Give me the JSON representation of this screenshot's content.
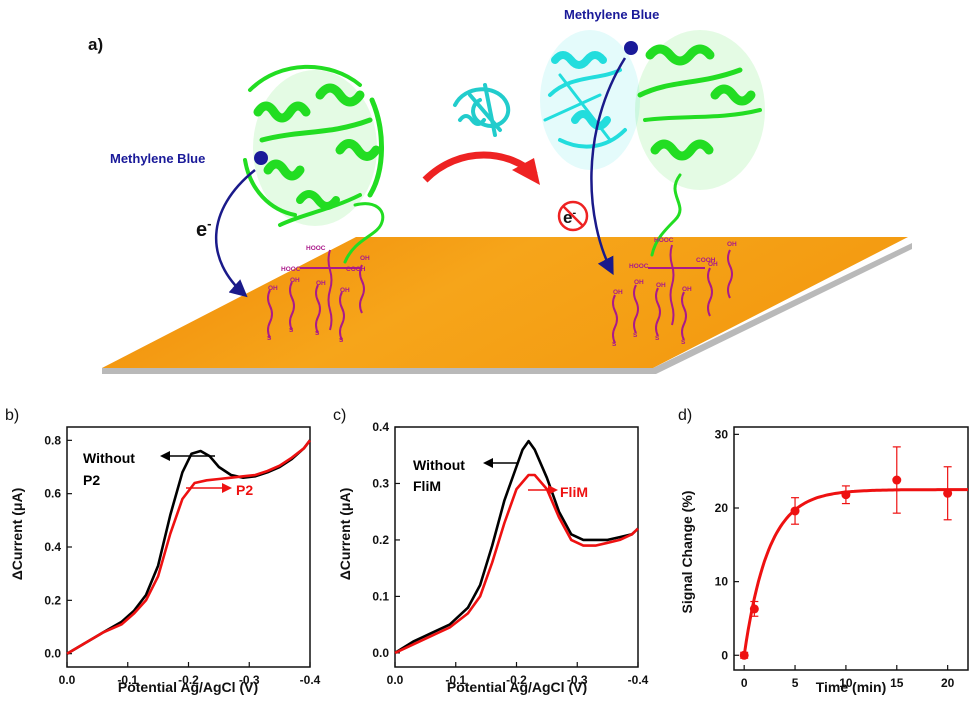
{
  "panel_a": {
    "label": "a)",
    "mb_left": "Methylene Blue",
    "mb_right": "Methylene Blue",
    "electron_left": "e",
    "electron_left_sup": "-",
    "electron_right": "e",
    "electron_right_sup": "-",
    "chem_labels": {
      "hooc_top": "HOOC",
      "hooc_side": "HOOC",
      "cooh": "COOH",
      "oh": "OH",
      "s": "S"
    },
    "colors": {
      "surface": "#f39a10",
      "protein": "#22dd22",
      "binder": "#22dddd",
      "arrow_red": "#ee2222",
      "arrow_blue": "#1a1a8a",
      "linker": "#aa1a8a",
      "mb_dot": "#1a1a99"
    }
  },
  "chart_data": [
    {
      "type": "line",
      "panel_label": "b)",
      "xlabel": "Potential Ag/AgCl (V)",
      "ylabel": "ΔCurrent (μA)",
      "xlim": [
        0.0,
        -0.4
      ],
      "ylim": [
        -0.05,
        0.85
      ],
      "xticks": [
        "0.0",
        "-0.1",
        "-0.2",
        "-0.3",
        "-0.4"
      ],
      "yticks": [
        "0.0",
        "0.2",
        "0.4",
        "0.6",
        "0.8"
      ],
      "annotations": [
        {
          "text": "Without",
          "color": "#000000"
        },
        {
          "text": "P2",
          "color": "#000000"
        },
        {
          "text": "P2",
          "color": "#ee1111"
        }
      ],
      "series": [
        {
          "color": "#000000",
          "x": [
            0.0,
            -0.03,
            -0.06,
            -0.09,
            -0.11,
            -0.13,
            -0.15,
            -0.17,
            -0.19,
            -0.205,
            -0.22,
            -0.235,
            -0.25,
            -0.27,
            -0.29,
            -0.31,
            -0.33,
            -0.35,
            -0.37,
            -0.39,
            -0.4
          ],
          "y": [
            0.0,
            0.04,
            0.08,
            0.12,
            0.16,
            0.22,
            0.33,
            0.52,
            0.68,
            0.75,
            0.76,
            0.74,
            0.7,
            0.67,
            0.66,
            0.665,
            0.68,
            0.7,
            0.73,
            0.77,
            0.8
          ]
        },
        {
          "color": "#ee1111",
          "x": [
            0.0,
            -0.03,
            -0.06,
            -0.09,
            -0.11,
            -0.13,
            -0.15,
            -0.17,
            -0.19,
            -0.21,
            -0.23,
            -0.25,
            -0.27,
            -0.29,
            -0.31,
            -0.33,
            -0.35,
            -0.37,
            -0.39,
            -0.4
          ],
          "y": [
            0.0,
            0.04,
            0.08,
            0.11,
            0.15,
            0.2,
            0.29,
            0.45,
            0.58,
            0.64,
            0.65,
            0.655,
            0.66,
            0.665,
            0.67,
            0.685,
            0.705,
            0.735,
            0.77,
            0.8
          ]
        }
      ]
    },
    {
      "type": "line",
      "panel_label": "c)",
      "xlabel": "Potential Ag/AgCl (V)",
      "ylabel": "ΔCurrent (μA)",
      "xlim": [
        0.0,
        -0.4
      ],
      "ylim": [
        -0.025,
        0.4
      ],
      "xticks": [
        "0.0",
        "-0.1",
        "-0.2",
        "-0.3",
        "-0.4"
      ],
      "yticks": [
        "0.0",
        "0.1",
        "0.2",
        "0.3",
        "0.4"
      ],
      "annotations": [
        {
          "text": "Without",
          "color": "#000000"
        },
        {
          "text": "FliM",
          "color": "#000000"
        },
        {
          "text": "FliM",
          "color": "#ee1111"
        }
      ],
      "series": [
        {
          "color": "#000000",
          "x": [
            0.0,
            -0.03,
            -0.06,
            -0.09,
            -0.12,
            -0.14,
            -0.16,
            -0.18,
            -0.2,
            -0.21,
            -0.22,
            -0.23,
            -0.25,
            -0.27,
            -0.29,
            -0.31,
            -0.33,
            -0.35,
            -0.37,
            -0.39,
            -0.4
          ],
          "y": [
            0.0,
            0.02,
            0.035,
            0.05,
            0.08,
            0.12,
            0.19,
            0.27,
            0.33,
            0.36,
            0.375,
            0.36,
            0.31,
            0.25,
            0.21,
            0.2,
            0.2,
            0.2,
            0.205,
            0.21,
            0.22
          ]
        },
        {
          "color": "#ee1111",
          "x": [
            0.0,
            -0.03,
            -0.06,
            -0.09,
            -0.12,
            -0.14,
            -0.16,
            -0.18,
            -0.2,
            -0.22,
            -0.23,
            -0.25,
            -0.27,
            -0.29,
            -0.31,
            -0.33,
            -0.35,
            -0.37,
            -0.39,
            -0.4
          ],
          "y": [
            0.0,
            0.015,
            0.03,
            0.045,
            0.07,
            0.1,
            0.16,
            0.23,
            0.29,
            0.315,
            0.315,
            0.29,
            0.24,
            0.2,
            0.19,
            0.19,
            0.195,
            0.2,
            0.21,
            0.22
          ]
        }
      ]
    },
    {
      "type": "scatter",
      "panel_label": "d)",
      "xlabel": "Time (min)",
      "ylabel": "Signal Change (%)",
      "xlim": [
        -1,
        22
      ],
      "ylim": [
        -2,
        31
      ],
      "xticks": [
        "0",
        "5",
        "10",
        "15",
        "20"
      ],
      "yticks": [
        "0",
        "10",
        "20",
        "30"
      ],
      "points": [
        {
          "x": 0,
          "y": 0.0,
          "err": 0.4
        },
        {
          "x": 1,
          "y": 6.3,
          "err": 1.0
        },
        {
          "x": 5,
          "y": 19.6,
          "err": 1.8
        },
        {
          "x": 10,
          "y": 21.8,
          "err": 1.2
        },
        {
          "x": 15,
          "y": 23.8,
          "err": 4.5
        },
        {
          "x": 20,
          "y": 22.0,
          "err": 3.6
        }
      ],
      "fit": {
        "model": "y = A(1 - exp(-k x))",
        "A": 22.5,
        "k": 0.42
      },
      "color": "#ee1111"
    }
  ]
}
